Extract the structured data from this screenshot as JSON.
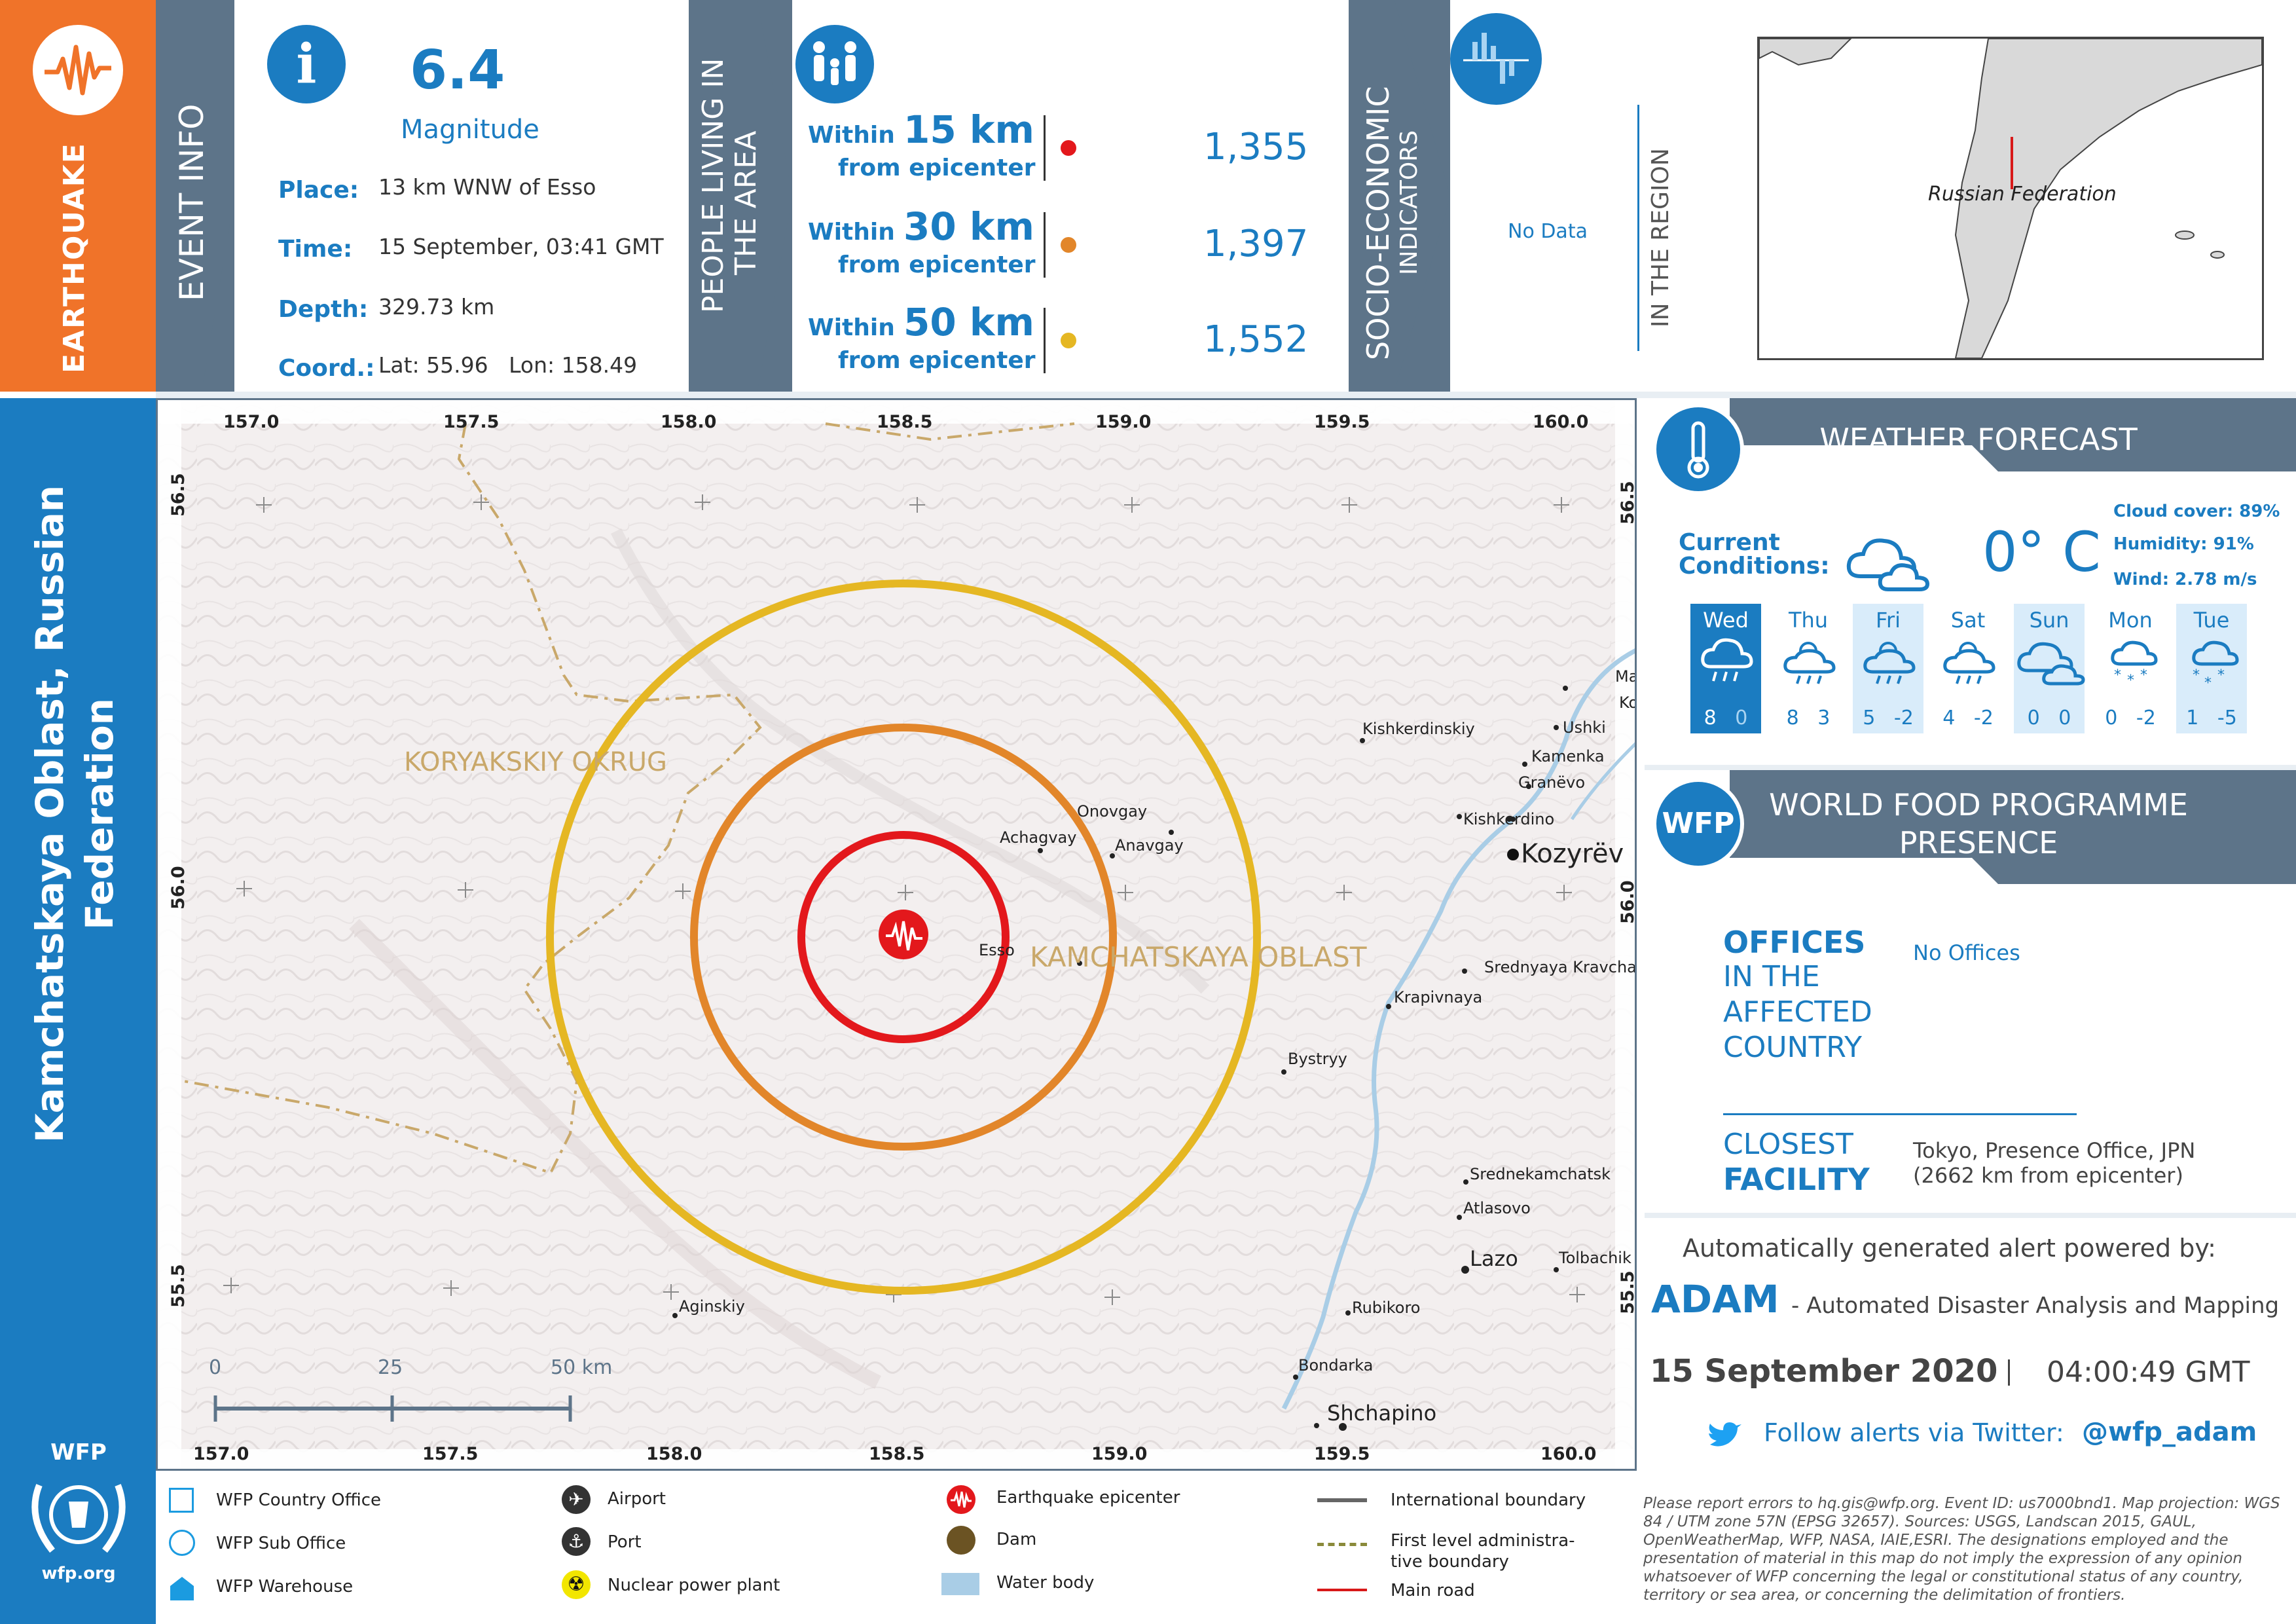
{
  "hazard": "EARTHQUAKE",
  "location_title": "Kamchatskaya Oblast, Russian Federation",
  "event_info": {
    "section_label": "EVENT INFO",
    "magnitude": "6.4",
    "magnitude_label": "Magnitude",
    "rows": [
      {
        "label": "Place:",
        "value": "13 km WNW of Esso"
      },
      {
        "label": "Time:",
        "value": "15 September, 03:41 GMT"
      },
      {
        "label": "Depth:",
        "value": "329.73 km"
      },
      {
        "label": "Coord.:",
        "value": "Lat: 55.96   Lon: 158.49"
      }
    ]
  },
  "population": {
    "section_label_1": "PEOPLE LIVING IN",
    "section_label_2": "THE AREA",
    "rows": [
      {
        "within": "Within",
        "km": "15 km",
        "from": "from epicenter",
        "count": "1,355",
        "color": "#e3181c"
      },
      {
        "within": "Within",
        "km": "30 km",
        "from": "from epicenter",
        "count": "1,397",
        "color": "#e2862a"
      },
      {
        "within": "Within",
        "km": "50 km",
        "from": "from epicenter",
        "count": "1,552",
        "color": "#e5b723"
      }
    ]
  },
  "socio": {
    "label_1": "SOCIO-ECONOMIC",
    "label_2": "INDICATORS",
    "value": "No Data",
    "region_label": "IN THE REGION"
  },
  "inset": {
    "country": "Russian Federation"
  },
  "weather": {
    "title": "WEATHER FORECAST",
    "current_label_1": "Current",
    "current_label_2": "Conditions:",
    "temperature": "0° C",
    "cloud": "Cloud cover: 89%",
    "humidity": "Humidity: 91%",
    "wind": "Wind: 2.78 m/s",
    "days": [
      {
        "name": "Wed",
        "hi": "8",
        "lo": "0",
        "icon": "rain-cloud-icon"
      },
      {
        "name": "Thu",
        "hi": "8",
        "lo": "3",
        "icon": "sun-rain-icon"
      },
      {
        "name": "Fri",
        "hi": "5",
        "lo": "-2",
        "icon": "sun-rain-icon"
      },
      {
        "name": "Sat",
        "hi": "4",
        "lo": "-2",
        "icon": "sun-rain-icon"
      },
      {
        "name": "Sun",
        "hi": "0",
        "lo": "0",
        "icon": "cloud-icon"
      },
      {
        "name": "Mon",
        "hi": "0",
        "lo": "-2",
        "icon": "snow-icon"
      },
      {
        "name": "Tue",
        "hi": "1",
        "lo": "-5",
        "icon": "snow-cloud-icon"
      }
    ]
  },
  "wfp": {
    "badge": "WFP",
    "title_1": "WORLD FOOD PROGRAMME",
    "title_2": "PRESENCE",
    "offices_1": "OFFICES",
    "offices_2": "IN THE",
    "offices_3": "AFFECTED",
    "offices_4": "COUNTRY",
    "offices_value": "No Offices",
    "closest_1": "CLOSEST",
    "closest_2": "FACILITY",
    "closest_value_1": "Tokyo, Presence Office, JPN",
    "closest_value_2": "(2662 km from epicenter)"
  },
  "footer": {
    "powered": "Automatically generated alert powered by:",
    "adam": "ADAM",
    "adam_desc": "- Automated Disaster Analysis and Mapping",
    "date": "15 September 2020",
    "time": "04:00:49 GMT",
    "twitter_text": "Follow alerts via Twitter:",
    "twitter_handle": "@wfp_adam",
    "logo_text": "WFP",
    "logo_url": "wfp.org"
  },
  "legend": [
    {
      "label": "WFP Country Office",
      "icon": "square-outline-icon"
    },
    {
      "label": "WFP Sub Office",
      "icon": "circle-outline-icon"
    },
    {
      "label": "WFP Warehouse",
      "icon": "warehouse-icon"
    },
    {
      "label": "Airport",
      "icon": "airport-icon"
    },
    {
      "label": "Port",
      "icon": "anchor-icon"
    },
    {
      "label": "Nuclear power plant",
      "icon": "nuclear-icon"
    },
    {
      "label": "Earthquake epicenter",
      "icon": "epicenter-icon"
    },
    {
      "label": "Dam",
      "icon": "dam-icon"
    },
    {
      "label": "Water body",
      "icon": "water-body-icon"
    },
    {
      "label": "International boundary",
      "icon": "intl-boundary-icon"
    },
    {
      "label": "First level administra-",
      "label2": "tive boundary",
      "icon": "admin-boundary-icon"
    },
    {
      "label": "Main road",
      "icon": "main-road-icon"
    }
  ],
  "disclaimer": "Please report errors to hq.gis@wfp.org. Event ID: us7000bnd1. Map projection: WGS 84 / UTM zone 57N (EPSG 32657). Sources: USGS, Landscan 2015, GAUL, OpenWeatherMap, WFP, NASA, IAIE,ESRI. The designations employed and the presentation of material in this map do not imply the expression of any opinion whatsoever of WFP concerning the legal or constitutional status of any country, territory or sea area, or concerning the delimitation of frontiers.",
  "map": {
    "lon_ticks": [
      "157.0",
      "157.5",
      "158.0",
      "158.5",
      "159.0",
      "159.5",
      "160.0"
    ],
    "lat_ticks": [
      "56.5",
      "56.0",
      "55.5"
    ],
    "scale": [
      "0",
      "25",
      "50 km"
    ],
    "regions": [
      "KORYAKSKIY OKRUG",
      "KAMCHATSKAYA OBLAST"
    ],
    "places": [
      {
        "name": "Kishkerdinskiy"
      },
      {
        "name": "Ma"
      },
      {
        "name": "Kozy"
      },
      {
        "name": "Ushki"
      },
      {
        "name": "Kamenka"
      },
      {
        "name": "Granëvo"
      },
      {
        "name": "Kishkerdino"
      },
      {
        "name": "Kozyrëv"
      },
      {
        "name": "Onovgay"
      },
      {
        "name": "Achagvay"
      },
      {
        "name": "Anavgay"
      },
      {
        "name": "Esso"
      },
      {
        "name": "Srednyaya Kravcha"
      },
      {
        "name": "Krapivnaya"
      },
      {
        "name": "Bystryy"
      },
      {
        "name": "Srednekamchatsk"
      },
      {
        "name": "Atlasovo"
      },
      {
        "name": "Lazo"
      },
      {
        "name": "Tolbachik"
      },
      {
        "name": "Aginskiy"
      },
      {
        "name": "Rubikoro"
      },
      {
        "name": "Bondarka"
      },
      {
        "name": "Shchapino"
      }
    ]
  }
}
